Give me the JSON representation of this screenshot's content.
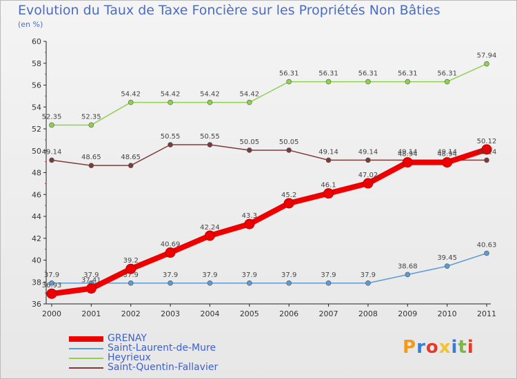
{
  "title": "Evolution du Taux de Taxe Foncière sur les Propriétés Non Bâties",
  "unit_label": "(en %)",
  "logo": {
    "text": "Proxiti",
    "letters": [
      "P",
      "r",
      "o",
      "x",
      "i",
      "t",
      "i"
    ],
    "colors": [
      "#f39a1c",
      "#3a7bd5",
      "#e23b2a",
      "#f2c230",
      "#3a7bd5",
      "#7ab648",
      "#e23b2a"
    ]
  },
  "chart_data": {
    "type": "line",
    "x": [
      "2000",
      "2001",
      "2002",
      "2003",
      "2004",
      "2005",
      "2006",
      "2007",
      "2008",
      "2009",
      "2010",
      "2011"
    ],
    "ylim": [
      36,
      60
    ],
    "yticks": [
      "36",
      "38",
      "40",
      "42",
      "44",
      "46",
      "48",
      "50",
      "52",
      "54",
      "56",
      "58",
      "60"
    ],
    "grid": false,
    "legend_position": "bottom-left",
    "series": [
      {
        "name": "GRENAY",
        "color": "#ee0000",
        "emphasis": true,
        "values": [
          36.93,
          37.41,
          39.2,
          40.69,
          42.24,
          43.3,
          45.2,
          46.1,
          47.02,
          48.94,
          48.94,
          50.12
        ],
        "labels": [
          "36.93",
          "37.41",
          "39.2",
          "40.69",
          "42.24",
          "43.3",
          "45.2",
          "46.1",
          "47.02",
          "48.94",
          "48.94",
          "50.12"
        ]
      },
      {
        "name": "Saint-Laurent-de-Mure",
        "color": "#5b9bd5",
        "values": [
          37.9,
          37.9,
          37.9,
          37.9,
          37.9,
          37.9,
          37.9,
          37.9,
          37.9,
          38.68,
          39.45,
          40.63
        ],
        "labels": [
          "37.9",
          "37.9",
          "37.9",
          "37.9",
          "37.9",
          "37.9",
          "37.9",
          "37.9",
          "37.9",
          "38.68",
          "39.45",
          "40.63"
        ]
      },
      {
        "name": "Heyrieux",
        "color": "#8fd14f",
        "values": [
          52.35,
          52.35,
          54.42,
          54.42,
          54.42,
          54.42,
          56.31,
          56.31,
          56.31,
          56.31,
          56.31,
          57.94
        ],
        "labels": [
          "52.35",
          "52.35",
          "54.42",
          "54.42",
          "54.42",
          "54.42",
          "56.31",
          "56.31",
          "56.31",
          "56.31",
          "56.31",
          "57.94"
        ]
      },
      {
        "name": "Saint-Quentin-Fallavier",
        "color": "#7b3b3b",
        "values": [
          49.14,
          48.65,
          48.65,
          50.55,
          50.55,
          50.05,
          50.05,
          49.14,
          49.14,
          49.14,
          49.14,
          49.14
        ],
        "labels": [
          "49.14",
          "48.65",
          "48.65",
          "50.55",
          "50.55",
          "50.05",
          "50.05",
          "49.14",
          "49.14",
          "49.14",
          "49.14",
          "49.14"
        ]
      }
    ]
  }
}
